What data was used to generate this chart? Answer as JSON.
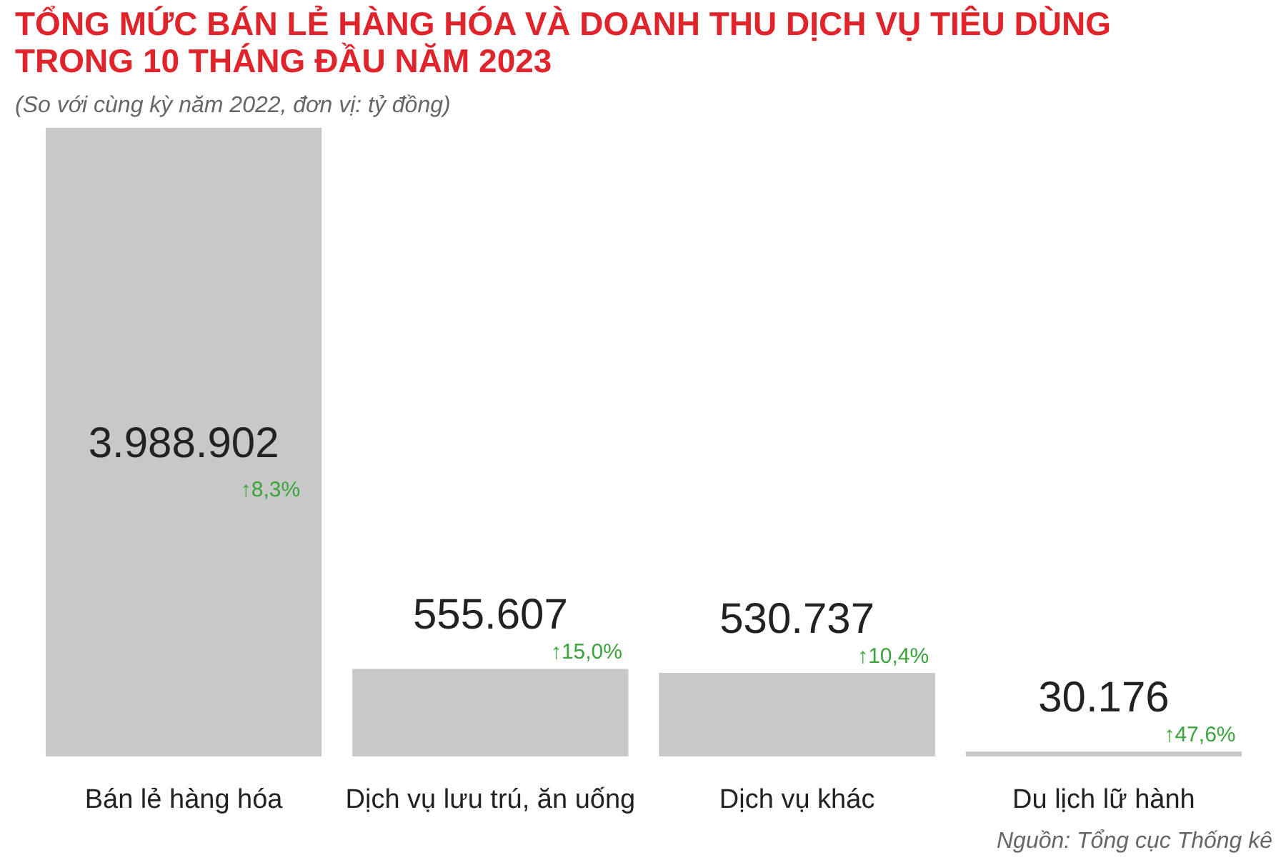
{
  "chart_data": {
    "type": "bar",
    "title": "TỔNG MỨC BÁN LẺ HÀNG HÓA VÀ DOANH THU DỊCH VỤ TIÊU DÙNG TRONG 10 THÁNG ĐẦU NĂM 2023",
    "subtitle": "(So với cùng kỳ năm 2022, đơn vị: tỷ đồng)",
    "categories": [
      "Bán lẻ hàng hóa",
      "Dịch vụ lưu trú, ăn uống",
      "Dịch vụ khác",
      "Du lịch lữ hành"
    ],
    "values": [
      3988902,
      555607,
      530737,
      30176
    ],
    "color": "#c9c8c9",
    "value_labels": [
      "3.988.902",
      "555.607",
      "530.737",
      "30.176"
    ],
    "annotations": [
      "↑8,3%",
      "↑15,0%",
      "↑10,4%",
      "↑47,6%",
      "Nguồn: Tổng cục Thống kê"
    ]
  }
}
